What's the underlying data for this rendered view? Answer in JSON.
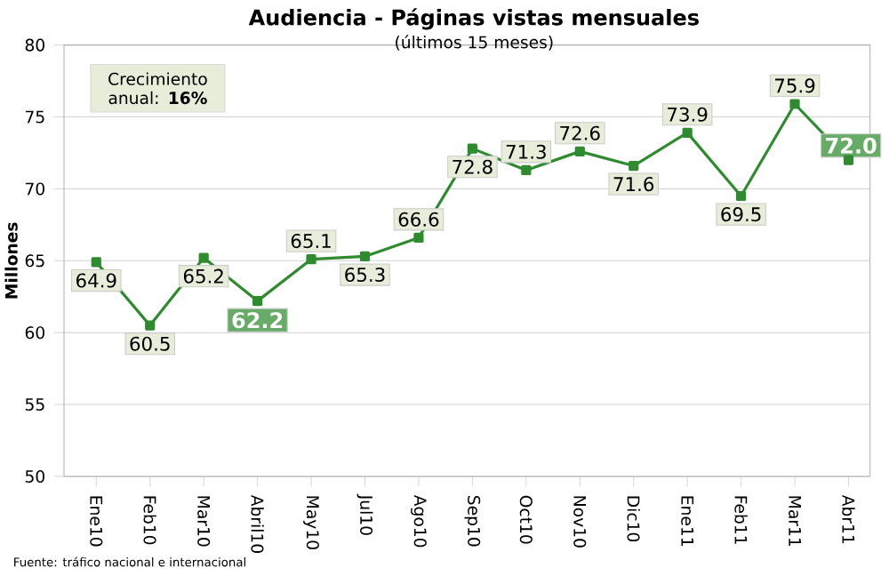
{
  "chart_data": {
    "type": "line",
    "title": "Audiencia - Páginas vistas mensuales",
    "subtitle": "(últimos 15 meses)",
    "ylabel": "Millones",
    "categories": [
      "Ene10",
      "Feb10",
      "Mar10",
      "Abril10",
      "May10",
      "Jul10",
      "Ago10",
      "Sep10",
      "Oct10",
      "Nov10",
      "Dic10",
      "Ene11",
      "Feb11",
      "Mar11",
      "Abr11"
    ],
    "values": [
      64.9,
      60.5,
      65.2,
      62.2,
      65.1,
      65.3,
      66.6,
      72.8,
      71.3,
      72.6,
      71.6,
      73.9,
      69.5,
      75.9,
      72.0
    ],
    "value_labels": [
      "64.9",
      "60.5",
      "65.2",
      "62.2",
      "65.1",
      "65.3",
      "66.6",
      "72.8",
      "71.3",
      "72.6",
      "71.6",
      "73.9",
      "69.5",
      "75.9",
      "72.0"
    ],
    "color": "#2e8b2e",
    "marker": "square",
    "grid": "y",
    "ylim": [
      50,
      80
    ],
    "yticks": [
      50,
      55,
      60,
      65,
      70,
      75,
      80
    ],
    "annotations": [
      "Crecimiento anual: **16%**",
      "Fuente: tráfico nacional e internacional"
    ]
  }
}
